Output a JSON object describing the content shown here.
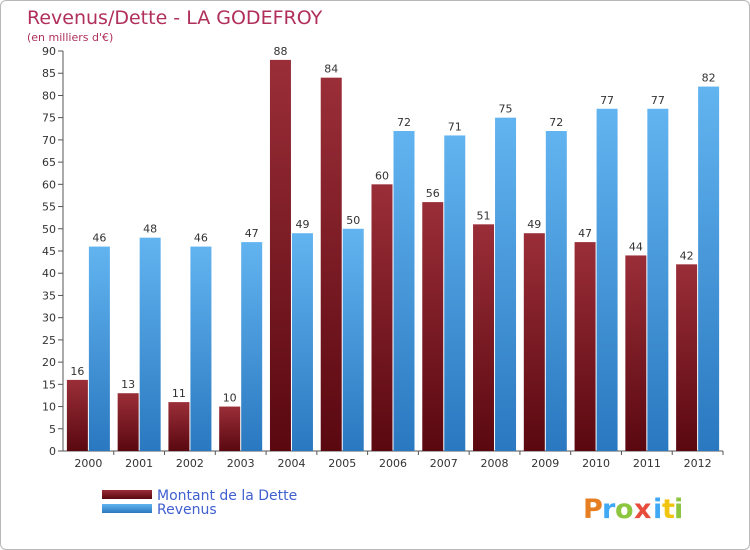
{
  "chart_data": {
    "type": "bar",
    "title": "Revenus/Dette - LA GODEFROY",
    "subtitle": "(en milliers d'€)",
    "xlabel": "",
    "ylabel": "",
    "ylim": [
      0,
      90
    ],
    "ytick_step": 5,
    "yticks": [
      "0",
      "5",
      "10",
      "15",
      "20",
      "25",
      "30",
      "35",
      "40",
      "45",
      "50",
      "55",
      "60",
      "65",
      "70",
      "75",
      "80",
      "85",
      "90"
    ],
    "grid": false,
    "legend_position": "bottom-left",
    "categories": [
      "2000",
      "2001",
      "2002",
      "2003",
      "2004",
      "2005",
      "2006",
      "2007",
      "2008",
      "2009",
      "2010",
      "2011",
      "2012"
    ],
    "series": [
      {
        "name": "Montant de la Dette",
        "color": "#7a1a22",
        "values": [
          16,
          13,
          11,
          10,
          88,
          84,
          60,
          56,
          51,
          49,
          47,
          44,
          42
        ]
      },
      {
        "name": "Revenus",
        "color": "#4aa3e6",
        "values": [
          46,
          48,
          46,
          47,
          49,
          50,
          72,
          71,
          75,
          72,
          77,
          77,
          82
        ]
      }
    ]
  },
  "colors": {
    "title": "#b0305a",
    "legend_text": "#4060d0",
    "axis": "#555555",
    "label": "#333333"
  },
  "logo": {
    "text": "Proxiti"
  }
}
